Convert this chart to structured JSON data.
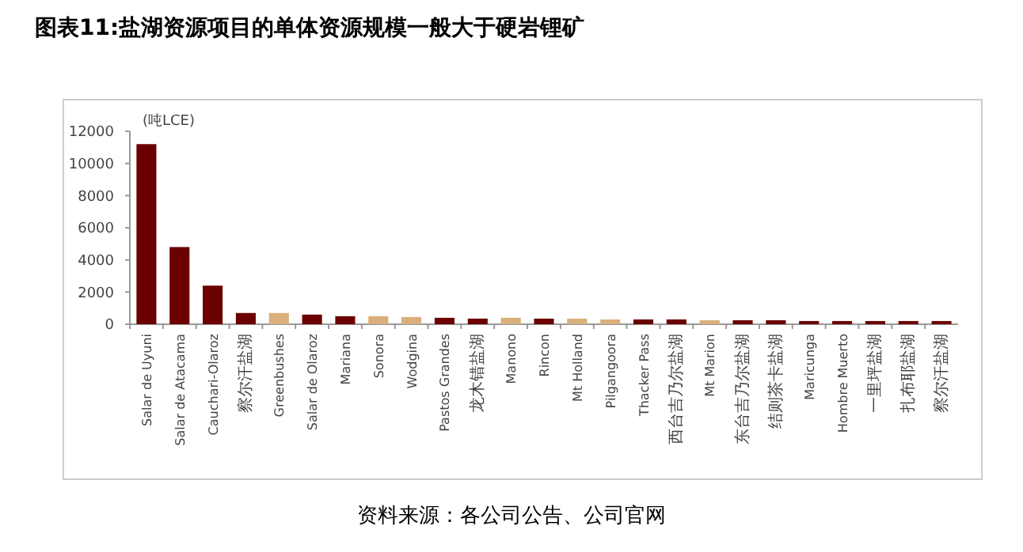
{
  "chart_data": {
    "type": "bar",
    "title": "图表11:盐湖资源项目的单体资源规模一般大于硬岩锂矿",
    "ylabel": "(吨LCE)",
    "categories": [
      "Salar de Uyuni",
      "Salar de Atacama",
      "Cauchari-Olaroz",
      "察尔汗盐湖",
      "Greenbushes",
      "Salar de Olaroz",
      "Mariana",
      "Sonora",
      "Wodgina",
      "Pastos Grandes",
      "龙木错盐湖",
      "Manono",
      "Rincon",
      "Mt Holland",
      "Pilgangoora",
      "Thacker Pass",
      "西台吉乃尔盐湖",
      "Mt Marion",
      "东台吉乃尔盐湖",
      "结则茶卡盐湖",
      "Maricunga",
      "Hombre Muerto",
      "一里坪盐湖",
      "扎布耶盐湖",
      "察尔汗盐湖"
    ],
    "values": [
      11200,
      4800,
      2400,
      700,
      700,
      600,
      500,
      500,
      450,
      400,
      350,
      400,
      350,
      350,
      300,
      300,
      300,
      250,
      250,
      250,
      200,
      200,
      200,
      200,
      200
    ],
    "colors": [
      "#6b0000",
      "#6b0000",
      "#6b0000",
      "#6b0000",
      "#d9b07c",
      "#6b0000",
      "#6b0000",
      "#d9b07c",
      "#d9b07c",
      "#6b0000",
      "#6b0000",
      "#d9b07c",
      "#6b0000",
      "#d9b07c",
      "#d9b07c",
      "#6b0000",
      "#6b0000",
      "#d9b07c",
      "#6b0000",
      "#6b0000",
      "#6b0000",
      "#6b0000",
      "#6b0000",
      "#6b0000",
      "#6b0000"
    ],
    "ylim": [
      0,
      12000
    ],
    "yticks": [
      0,
      2000,
      4000,
      6000,
      8000,
      10000,
      12000
    ],
    "annotations": [
      "资料来源：各公司公告、公司官网"
    ]
  }
}
